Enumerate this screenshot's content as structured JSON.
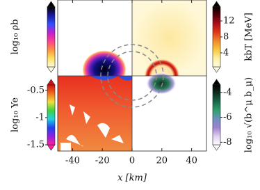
{
  "chart_data": {
    "type": "image-panels",
    "xlabel": "x [km]",
    "xlim": [
      -50,
      50
    ],
    "xticks": [
      -40,
      -20,
      0,
      20,
      40
    ],
    "colorbars": [
      {
        "label": "log₁₀ ρb",
        "lim": [
          0,
          1
        ],
        "ticks": [],
        "colormap": [
          "#000000",
          "#1a1aa0",
          "#3050ff",
          "#c020d0",
          "#ff4090",
          "#ff9040",
          "#ffe060",
          "#fffbe0"
        ]
      },
      {
        "label": "kbT [MeV]",
        "lim": [
          0.5,
          15.5
        ],
        "ticks": [
          4,
          8,
          12
        ],
        "colormap": [
          "#000000",
          "#5a0008",
          "#b0101a",
          "#e03a1a",
          "#f08a2a",
          "#f8c840",
          "#fff0a0",
          "#fffbe0"
        ]
      },
      {
        "label": "log₁₀ Ye",
        "lim": [
          -1.5,
          -0.4
        ],
        "ticks": [
          -0.5,
          -1.0,
          -1.5
        ],
        "colormap": [
          "#d01010",
          "#f07020",
          "#f0e040",
          "#40d040",
          "#20d0e0",
          "#2040f0",
          "#9020e0",
          "#ff20a0"
        ]
      },
      {
        "label": "log₁₀ √(b^μ b_μ)",
        "lim": [
          -8.2,
          -3.4
        ],
        "ticks": [
          -4,
          -6,
          -8
        ],
        "colormap": [
          "#000000",
          "#103020",
          "#1a6a4a",
          "#30a070",
          "#7090c0",
          "#a080d0",
          "#e0d0f0",
          "#ffffff"
        ]
      }
    ]
  }
}
